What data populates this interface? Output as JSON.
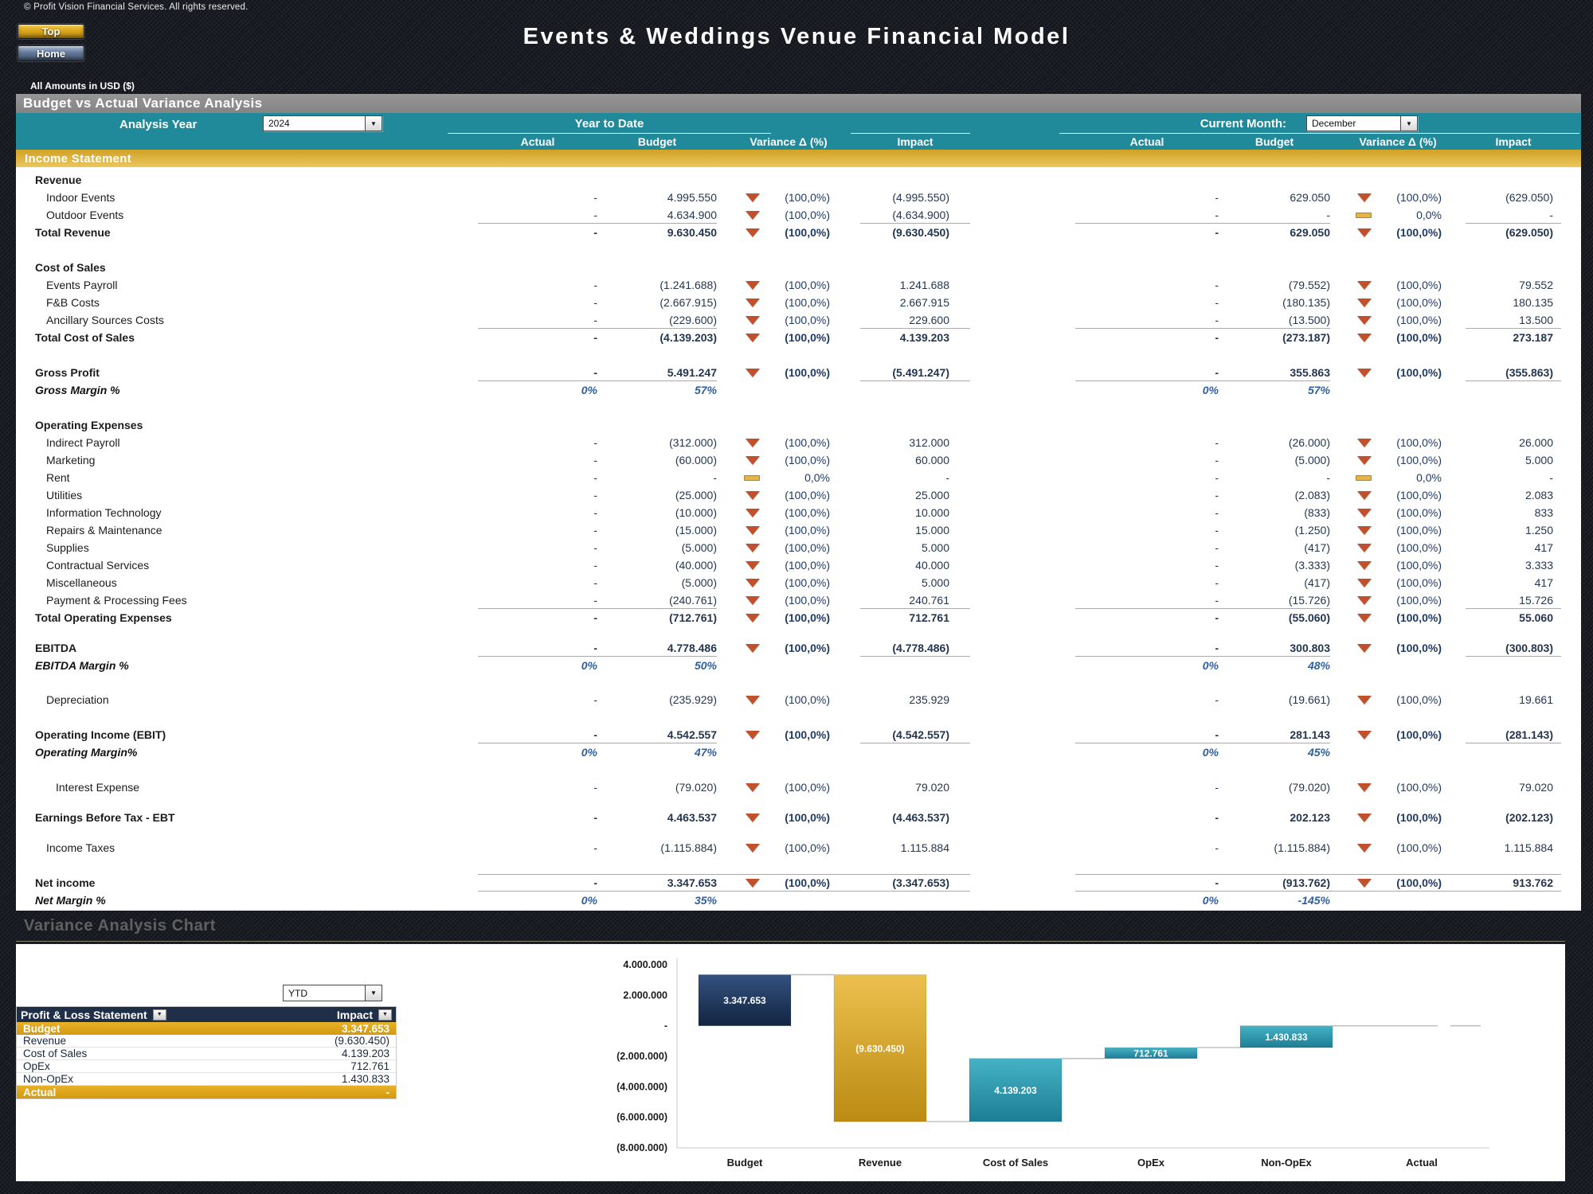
{
  "page": {
    "copyright": "© Profit Vision Financial Services. All rights reserved.",
    "title": "Events & Weddings Venue Financial Model",
    "amounts_note": "All Amounts in  USD ($)",
    "nav": {
      "top": "Top",
      "home": "Home"
    },
    "section_title": "Budget vs Actual Variance Analysis"
  },
  "header": {
    "analysis_year_label": "Analysis Year",
    "analysis_year_value": "2024",
    "ytd_group_label": "Year to Date",
    "current_month_label": "Current Month:",
    "current_month_value": "December",
    "columns": [
      "Actual",
      "Budget",
      "Variance Δ  (%)",
      "Impact"
    ]
  },
  "income_statement": {
    "bar_label": "Income Statement",
    "rows": [
      {
        "type": "section",
        "label": "Revenue"
      },
      {
        "type": "item",
        "label": "Indoor Events",
        "ytd": {
          "a": "-",
          "b": "4.995.550",
          "icon": "down",
          "v": "(100,0%)",
          "i": "(4.995.550)"
        },
        "cm": {
          "a": "-",
          "b": "629.050",
          "icon": "down",
          "v": "(100,0%)",
          "i": "(629.050)"
        }
      },
      {
        "type": "item",
        "label": "Outdoor Events",
        "rule_below": true,
        "ytd": {
          "a": "-",
          "b": "4.634.900",
          "icon": "down",
          "v": "(100,0%)",
          "i": "(4.634.900)"
        },
        "cm": {
          "a": "-",
          "b": "-",
          "icon": "flat",
          "v": "0,0%",
          "i": "-"
        }
      },
      {
        "type": "total",
        "label": "Total Revenue",
        "ytd": {
          "a": "-",
          "b": "9.630.450",
          "icon": "down",
          "v": "(100,0%)",
          "i": "(9.630.450)"
        },
        "cm": {
          "a": "-",
          "b": "629.050",
          "icon": "down",
          "v": "(100,0%)",
          "i": "(629.050)"
        }
      },
      {
        "type": "spacer",
        "h": 22
      },
      {
        "type": "section",
        "label": "Cost of Sales"
      },
      {
        "type": "item",
        "label": "Events Payroll",
        "ytd": {
          "a": "-",
          "b": "(1.241.688)",
          "icon": "down",
          "v": "(100,0%)",
          "i": "1.241.688"
        },
        "cm": {
          "a": "-",
          "b": "(79.552)",
          "icon": "down",
          "v": "(100,0%)",
          "i": "79.552"
        }
      },
      {
        "type": "item",
        "label": "F&B Costs",
        "ytd": {
          "a": "-",
          "b": "(2.667.915)",
          "icon": "down",
          "v": "(100,0%)",
          "i": "2.667.915"
        },
        "cm": {
          "a": "-",
          "b": "(180.135)",
          "icon": "down",
          "v": "(100,0%)",
          "i": "180.135"
        }
      },
      {
        "type": "item",
        "label": "Ancillary Sources Costs",
        "rule_below": true,
        "ytd": {
          "a": "-",
          "b": "(229.600)",
          "icon": "down",
          "v": "(100,0%)",
          "i": "229.600"
        },
        "cm": {
          "a": "-",
          "b": "(13.500)",
          "icon": "down",
          "v": "(100,0%)",
          "i": "13.500"
        }
      },
      {
        "type": "total",
        "label": "Total Cost of Sales",
        "ytd": {
          "a": "-",
          "b": "(4.139.203)",
          "icon": "down",
          "v": "(100,0%)",
          "i": "4.139.203"
        },
        "cm": {
          "a": "-",
          "b": "(273.187)",
          "icon": "down",
          "v": "(100,0%)",
          "i": "273.187"
        }
      },
      {
        "type": "spacer",
        "h": 22
      },
      {
        "type": "total",
        "label": "Gross Profit",
        "rule_below": true,
        "ytd": {
          "a": "-",
          "b": "5.491.247",
          "icon": "down",
          "v": "(100,0%)",
          "i": "(5.491.247)"
        },
        "cm": {
          "a": "-",
          "b": "355.863",
          "icon": "down",
          "v": "(100,0%)",
          "i": "(355.863)"
        }
      },
      {
        "type": "margin",
        "label": "Gross Margin %",
        "ytd": {
          "a": "0%",
          "b": "57%"
        },
        "cm": {
          "a": "0%",
          "b": "57%"
        }
      },
      {
        "type": "spacer",
        "h": 22
      },
      {
        "type": "section",
        "label": "Operating Expenses"
      },
      {
        "type": "item",
        "label": "Indirect Payroll",
        "ytd": {
          "a": "-",
          "b": "(312.000)",
          "icon": "down",
          "v": "(100,0%)",
          "i": "312.000"
        },
        "cm": {
          "a": "-",
          "b": "(26.000)",
          "icon": "down",
          "v": "(100,0%)",
          "i": "26.000"
        }
      },
      {
        "type": "item",
        "label": "Marketing",
        "ytd": {
          "a": "-",
          "b": "(60.000)",
          "icon": "down",
          "v": "(100,0%)",
          "i": "60.000"
        },
        "cm": {
          "a": "-",
          "b": "(5.000)",
          "icon": "down",
          "v": "(100,0%)",
          "i": "5.000"
        }
      },
      {
        "type": "item",
        "label": "Rent",
        "ytd": {
          "a": "-",
          "b": "-",
          "icon": "flat",
          "v": "0,0%",
          "i": "-"
        },
        "cm": {
          "a": "-",
          "b": "-",
          "icon": "flat",
          "v": "0,0%",
          "i": "-"
        }
      },
      {
        "type": "item",
        "label": "Utilities",
        "ytd": {
          "a": "-",
          "b": "(25.000)",
          "icon": "down",
          "v": "(100,0%)",
          "i": "25.000"
        },
        "cm": {
          "a": "-",
          "b": "(2.083)",
          "icon": "down",
          "v": "(100,0%)",
          "i": "2.083"
        }
      },
      {
        "type": "item",
        "label": "Information Technology",
        "ytd": {
          "a": "-",
          "b": "(10.000)",
          "icon": "down",
          "v": "(100,0%)",
          "i": "10.000"
        },
        "cm": {
          "a": "-",
          "b": "(833)",
          "icon": "down",
          "v": "(100,0%)",
          "i": "833"
        }
      },
      {
        "type": "item",
        "label": "Repairs & Maintenance",
        "ytd": {
          "a": "-",
          "b": "(15.000)",
          "icon": "down",
          "v": "(100,0%)",
          "i": "15.000"
        },
        "cm": {
          "a": "-",
          "b": "(1.250)",
          "icon": "down",
          "v": "(100,0%)",
          "i": "1.250"
        }
      },
      {
        "type": "item",
        "label": "Supplies",
        "ytd": {
          "a": "-",
          "b": "(5.000)",
          "icon": "down",
          "v": "(100,0%)",
          "i": "5.000"
        },
        "cm": {
          "a": "-",
          "b": "(417)",
          "icon": "down",
          "v": "(100,0%)",
          "i": "417"
        }
      },
      {
        "type": "item",
        "label": "Contractual Services",
        "ytd": {
          "a": "-",
          "b": "(40.000)",
          "icon": "down",
          "v": "(100,0%)",
          "i": "40.000"
        },
        "cm": {
          "a": "-",
          "b": "(3.333)",
          "icon": "down",
          "v": "(100,0%)",
          "i": "3.333"
        }
      },
      {
        "type": "item",
        "label": "Miscellaneous",
        "ytd": {
          "a": "-",
          "b": "(5.000)",
          "icon": "down",
          "v": "(100,0%)",
          "i": "5.000"
        },
        "cm": {
          "a": "-",
          "b": "(417)",
          "icon": "down",
          "v": "(100,0%)",
          "i": "417"
        }
      },
      {
        "type": "item",
        "label": "Payment & Processing Fees",
        "rule_below": true,
        "ytd": {
          "a": "-",
          "b": "(240.761)",
          "icon": "down",
          "v": "(100,0%)",
          "i": "240.761"
        },
        "cm": {
          "a": "-",
          "b": "(15.726)",
          "icon": "down",
          "v": "(100,0%)",
          "i": "15.726"
        }
      },
      {
        "type": "total",
        "label": "Total Operating Expenses",
        "ytd": {
          "a": "-",
          "b": "(712.761)",
          "icon": "down",
          "v": "(100,0%)",
          "i": "712.761"
        },
        "cm": {
          "a": "-",
          "b": "(55.060)",
          "icon": "down",
          "v": "(100,0%)",
          "i": "55.060"
        }
      },
      {
        "type": "spacer",
        "h": 16
      },
      {
        "type": "total",
        "label": "EBITDA",
        "rule_below": true,
        "ytd": {
          "a": "-",
          "b": "4.778.486",
          "icon": "down",
          "v": "(100,0%)",
          "i": "(4.778.486)"
        },
        "cm": {
          "a": "-",
          "b": "300.803",
          "icon": "down",
          "v": "(100,0%)",
          "i": "(300.803)"
        }
      },
      {
        "type": "margin",
        "label": "EBITDA Margin %",
        "ytd": {
          "a": "0%",
          "b": "50%"
        },
        "cm": {
          "a": "0%",
          "b": "48%"
        }
      },
      {
        "type": "spacer",
        "h": 21
      },
      {
        "type": "item",
        "label": "Depreciation",
        "ytd": {
          "a": "-",
          "b": "(235.929)",
          "icon": "down",
          "v": "(100,0%)",
          "i": "235.929"
        },
        "cm": {
          "a": "-",
          "b": "(19.661)",
          "icon": "down",
          "v": "(100,0%)",
          "i": "19.661"
        }
      },
      {
        "type": "spacer",
        "h": 22
      },
      {
        "type": "total",
        "label": "Operating Income (EBIT)",
        "rule_below": true,
        "ytd": {
          "a": "-",
          "b": "4.542.557",
          "icon": "down",
          "v": "(100,0%)",
          "i": "(4.542.557)"
        },
        "cm": {
          "a": "-",
          "b": "281.143",
          "icon": "down",
          "v": "(100,0%)",
          "i": "(281.143)"
        }
      },
      {
        "type": "margin",
        "label": "Operating Margin%",
        "ytd": {
          "a": "0%",
          "b": "47%"
        },
        "cm": {
          "a": "0%",
          "b": "45%"
        }
      },
      {
        "type": "spacer",
        "h": 22
      },
      {
        "type": "item",
        "label": "Interest Expense",
        "indent": 2,
        "ytd": {
          "a": "-",
          "b": "(79.020)",
          "icon": "down",
          "v": "(100,0%)",
          "i": "79.020"
        },
        "cm": {
          "a": "-",
          "b": "(79.020)",
          "icon": "down",
          "v": "(100,0%)",
          "i": "79.020"
        }
      },
      {
        "type": "spacer",
        "h": 16
      },
      {
        "type": "total",
        "label": "Earnings Before Tax - EBT",
        "ytd": {
          "a": "-",
          "b": "4.463.537",
          "icon": "down",
          "v": "(100,0%)",
          "i": "(4.463.537)"
        },
        "cm": {
          "a": "-",
          "b": "202.123",
          "icon": "down",
          "v": "(100,0%)",
          "i": "(202.123)"
        }
      },
      {
        "type": "spacer",
        "h": 16
      },
      {
        "type": "item",
        "label": "Income Taxes",
        "ytd": {
          "a": "-",
          "b": "(1.115.884)",
          "icon": "down",
          "v": "(100,0%)",
          "i": "1.115.884"
        },
        "cm": {
          "a": "-",
          "b": "(1.115.884)",
          "icon": "down",
          "v": "(100,0%)",
          "i": "1.115.884"
        }
      },
      {
        "type": "spacer",
        "h": 22
      },
      {
        "type": "total",
        "label": "Net income",
        "rule_above": true,
        "rule_below": true,
        "full_rule": true,
        "ytd": {
          "a": "-",
          "b": "3.347.653",
          "icon": "down",
          "v": "(100,0%)",
          "i": "(3.347.653)"
        },
        "cm": {
          "a": "-",
          "b": "(913.762)",
          "icon": "down",
          "v": "(100,0%)",
          "i": "913.762"
        }
      },
      {
        "type": "margin",
        "label": "Net Margin %",
        "ytd": {
          "a": "0%",
          "b": "35%"
        },
        "cm": {
          "a": "0%",
          "b": "-145%"
        }
      }
    ]
  },
  "variance_section": {
    "faint_title": "Variance Analysis Chart",
    "period_value": "YTD",
    "table": {
      "col1_header": "Profit & Loss Statement",
      "col2_header": "Impact",
      "rows": [
        {
          "label": "Budget",
          "value": "3.347.653",
          "highlight": true
        },
        {
          "label": "Revenue",
          "value": "(9.630.450)",
          "highlight": false
        },
        {
          "label": "Cost of Sales",
          "value": "4.139.203",
          "highlight": false
        },
        {
          "label": "OpEx",
          "value": "712.761",
          "highlight": false
        },
        {
          "label": "Non-OpEx",
          "value": "1.430.833",
          "highlight": false
        },
        {
          "label": "Actual",
          "value": "-",
          "highlight": true
        }
      ]
    }
  },
  "chart_data": {
    "type": "bar",
    "subtype": "waterfall",
    "title": "Variance Analysis Chart",
    "categories": [
      "Budget",
      "Revenue",
      "Cost of Sales",
      "OpEx",
      "Non-OpEx",
      "Actual"
    ],
    "deltas": [
      3347653,
      -9630450,
      4139203,
      712761,
      1430833,
      0
    ],
    "labels": [
      "3.347.653",
      "(9.630.450)",
      "4.139.203",
      "712.761",
      "1.430.833",
      "-"
    ],
    "bar_colors": [
      "navy",
      "gold",
      "teal",
      "teal",
      "teal",
      "none"
    ],
    "ylim": [
      -8000000,
      4000000
    ],
    "yticks": [
      4000000,
      2000000,
      0,
      -2000000,
      -4000000,
      -6000000,
      -8000000
    ],
    "ytick_labels": [
      "4.000.000",
      "2.000.000",
      "-",
      "(2.000.000)",
      "(4.000.000)",
      "(6.000.000)",
      "(8.000.000)"
    ],
    "grid": false,
    "legend": false
  },
  "colors": {
    "teal_header": "#20899A",
    "gold_bar": "#D9A62B",
    "navy_table_header": "#1F2F47",
    "variance_down": "#C0512C",
    "variance_flat": "#E5B54B",
    "margin_blue": "#2F5F9E",
    "bar_navy": "#1C3358",
    "bar_gold": "#D9A62B",
    "bar_teal": "#2A93A8"
  }
}
